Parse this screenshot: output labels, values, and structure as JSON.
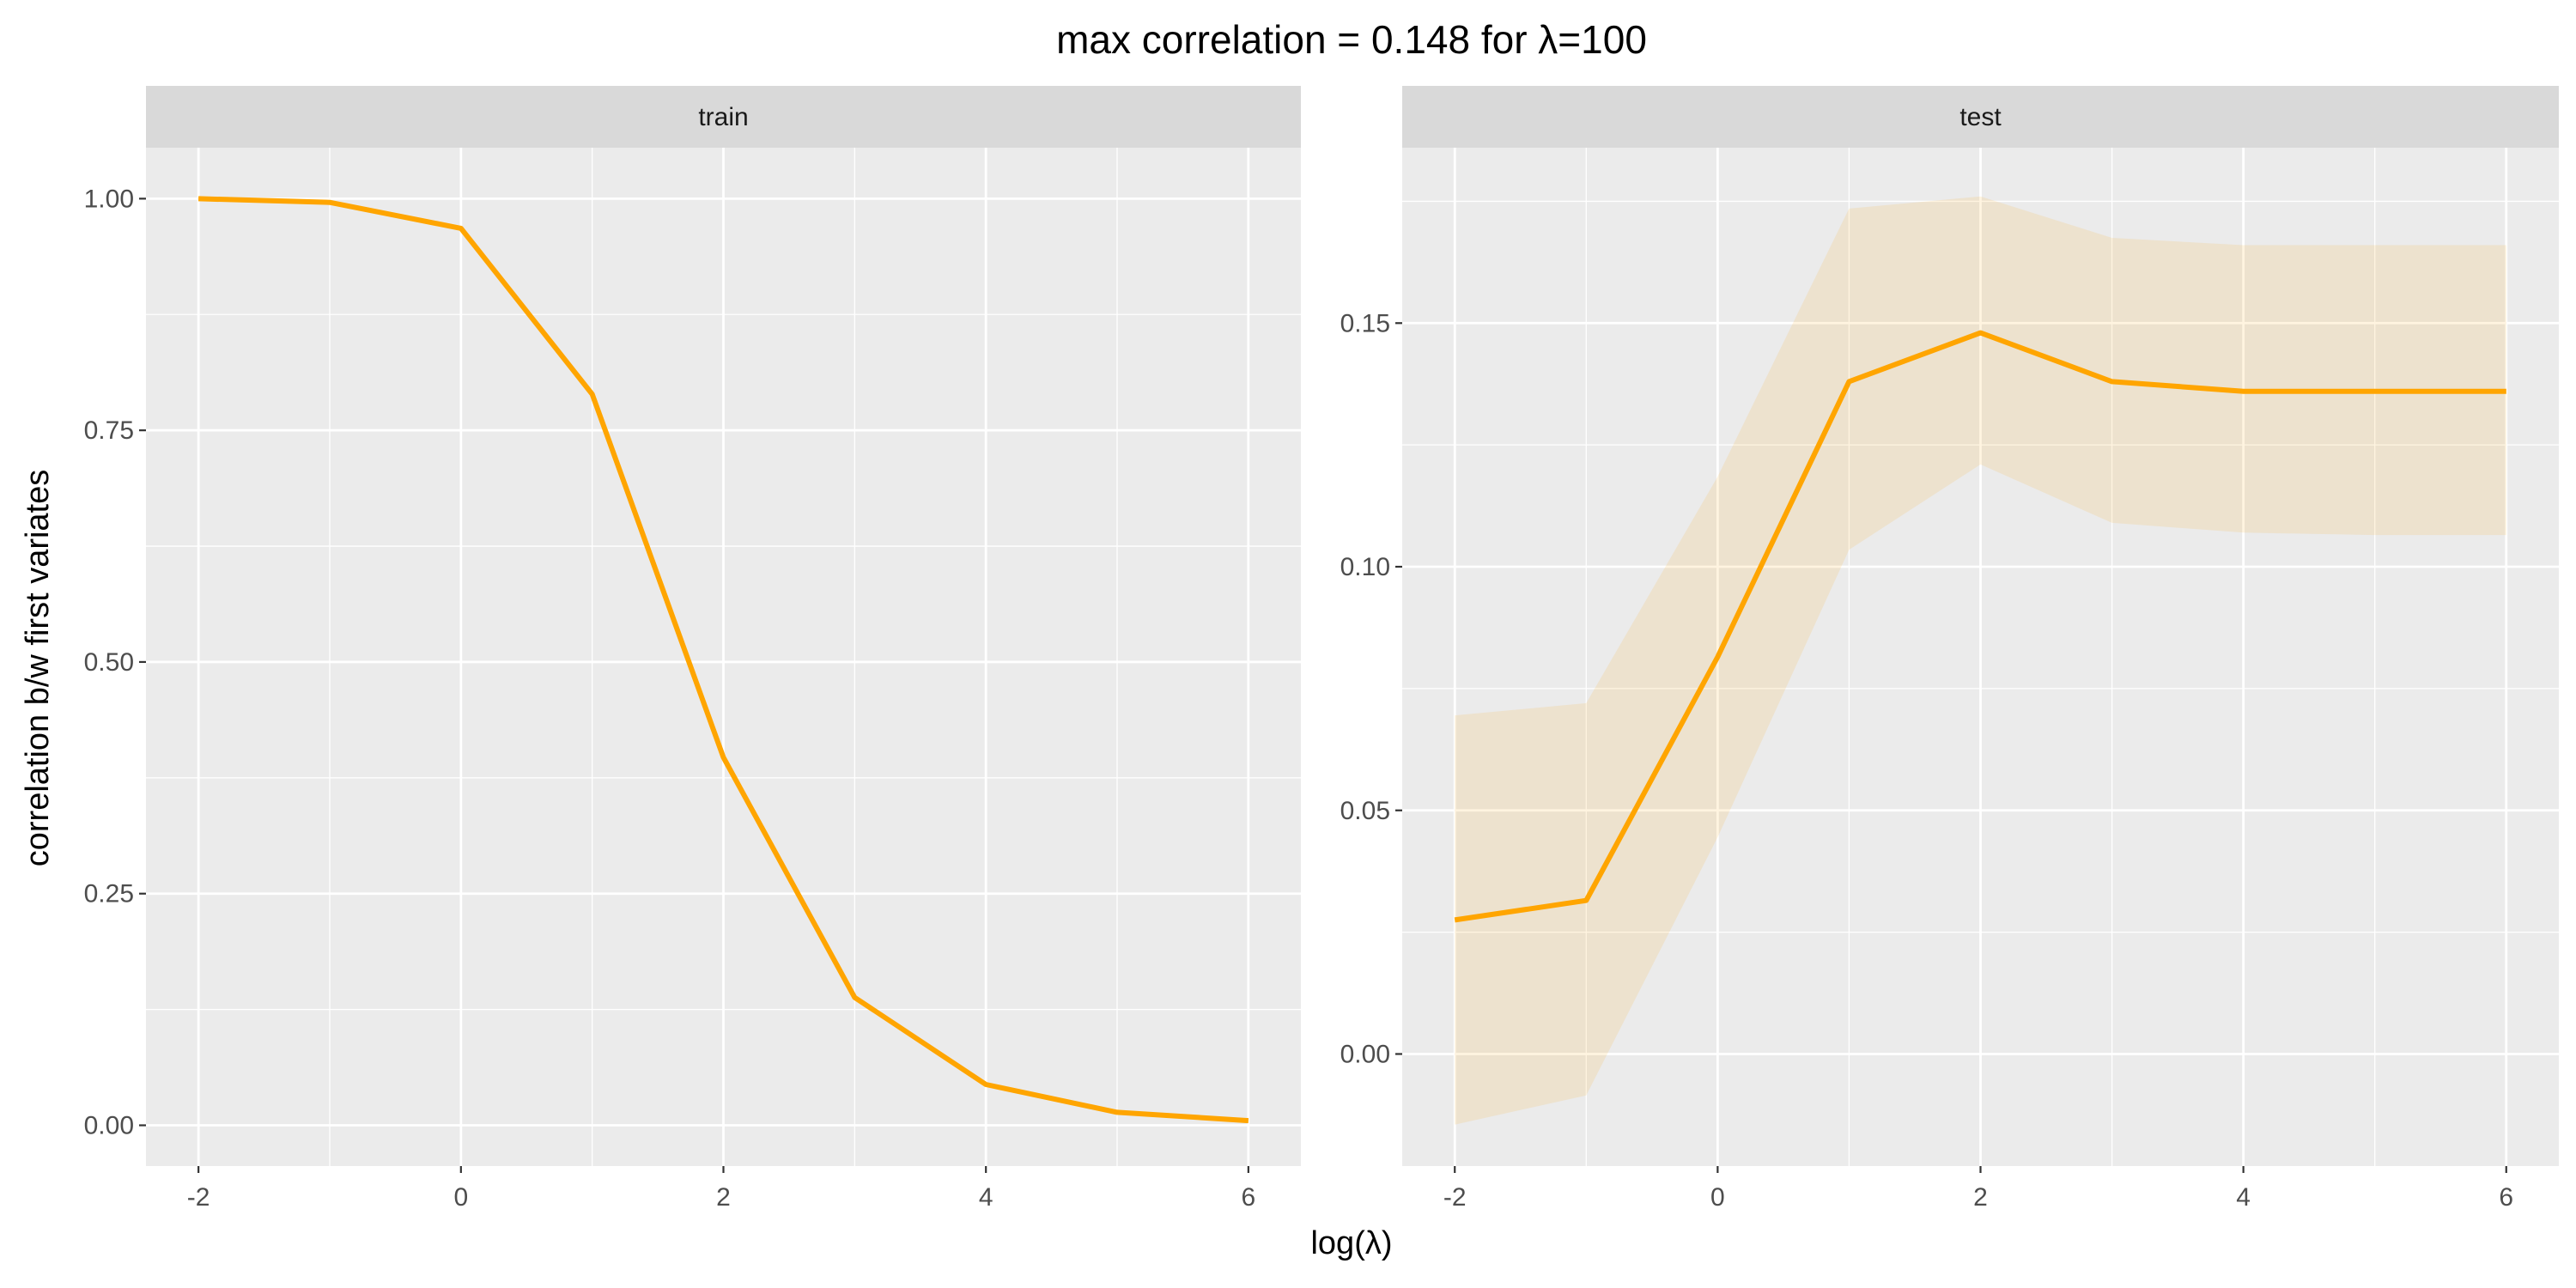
{
  "chart_data": {
    "type": "line",
    "title": "max correlation = 0.148  for  λ=100",
    "xlabel": "log(λ)",
    "ylabel": "correlation b/w first variates",
    "colors": {
      "line": "#FFA500",
      "ribbon": "#FFA500",
      "panel_background": "#EBEBEB",
      "strip_background": "#D9D9D9",
      "grid": "#FFFFFF"
    },
    "grid": true,
    "panels": [
      {
        "label": "train",
        "xlim": [
          -2.4,
          6.4
        ],
        "ylim": [
          -0.044,
          1.055
        ],
        "x_ticks": [
          -2,
          0,
          2,
          4,
          6
        ],
        "y_ticks": [
          "0.00",
          "0.25",
          "0.50",
          "0.75",
          "1.00"
        ],
        "x": [
          -2,
          -1,
          0,
          1,
          2,
          3,
          4,
          5,
          6
        ],
        "y": [
          1.0,
          0.996,
          0.968,
          0.789,
          0.397,
          0.138,
          0.044,
          0.014,
          0.005
        ]
      },
      {
        "label": "test",
        "xlim": [
          -2.4,
          6.4
        ],
        "ylim": [
          -0.023,
          0.186
        ],
        "x_ticks": [
          -2,
          0,
          2,
          4,
          6
        ],
        "y_ticks": [
          "0.00",
          "0.05",
          "0.10",
          "0.15"
        ],
        "x": [
          -2,
          -1,
          0,
          1,
          2,
          3,
          4,
          5,
          6
        ],
        "y": [
          0.0275,
          0.0315,
          0.0815,
          0.138,
          0.148,
          0.138,
          0.136,
          0.136,
          0.136
        ],
        "lower": [
          -0.0145,
          -0.0085,
          0.0445,
          0.1035,
          0.121,
          0.109,
          0.107,
          0.1065,
          0.1065
        ],
        "upper": [
          0.0695,
          0.072,
          0.1185,
          0.1735,
          0.176,
          0.1675,
          0.166,
          0.166,
          0.166
        ]
      }
    ]
  }
}
